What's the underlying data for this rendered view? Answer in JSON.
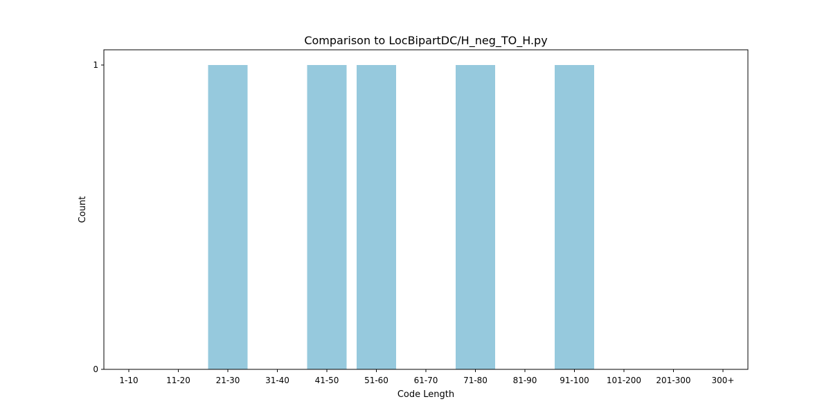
{
  "chart_data": {
    "type": "bar",
    "title": "Comparison to LocBipartDC/H_neg_TO_H.py",
    "xlabel": "Code Length",
    "ylabel": "Count",
    "categories": [
      "1-10",
      "11-20",
      "21-30",
      "31-40",
      "41-50",
      "51-60",
      "61-70",
      "71-80",
      "81-90",
      "91-100",
      "101-200",
      "201-300",
      "300+"
    ],
    "values": [
      0,
      0,
      1,
      0,
      1,
      1,
      0,
      1,
      0,
      1,
      0,
      0,
      0
    ],
    "ylim": [
      0,
      1.05
    ],
    "yticks": [
      0,
      1
    ],
    "grid": false,
    "bar_color": "#96c9dd"
  }
}
